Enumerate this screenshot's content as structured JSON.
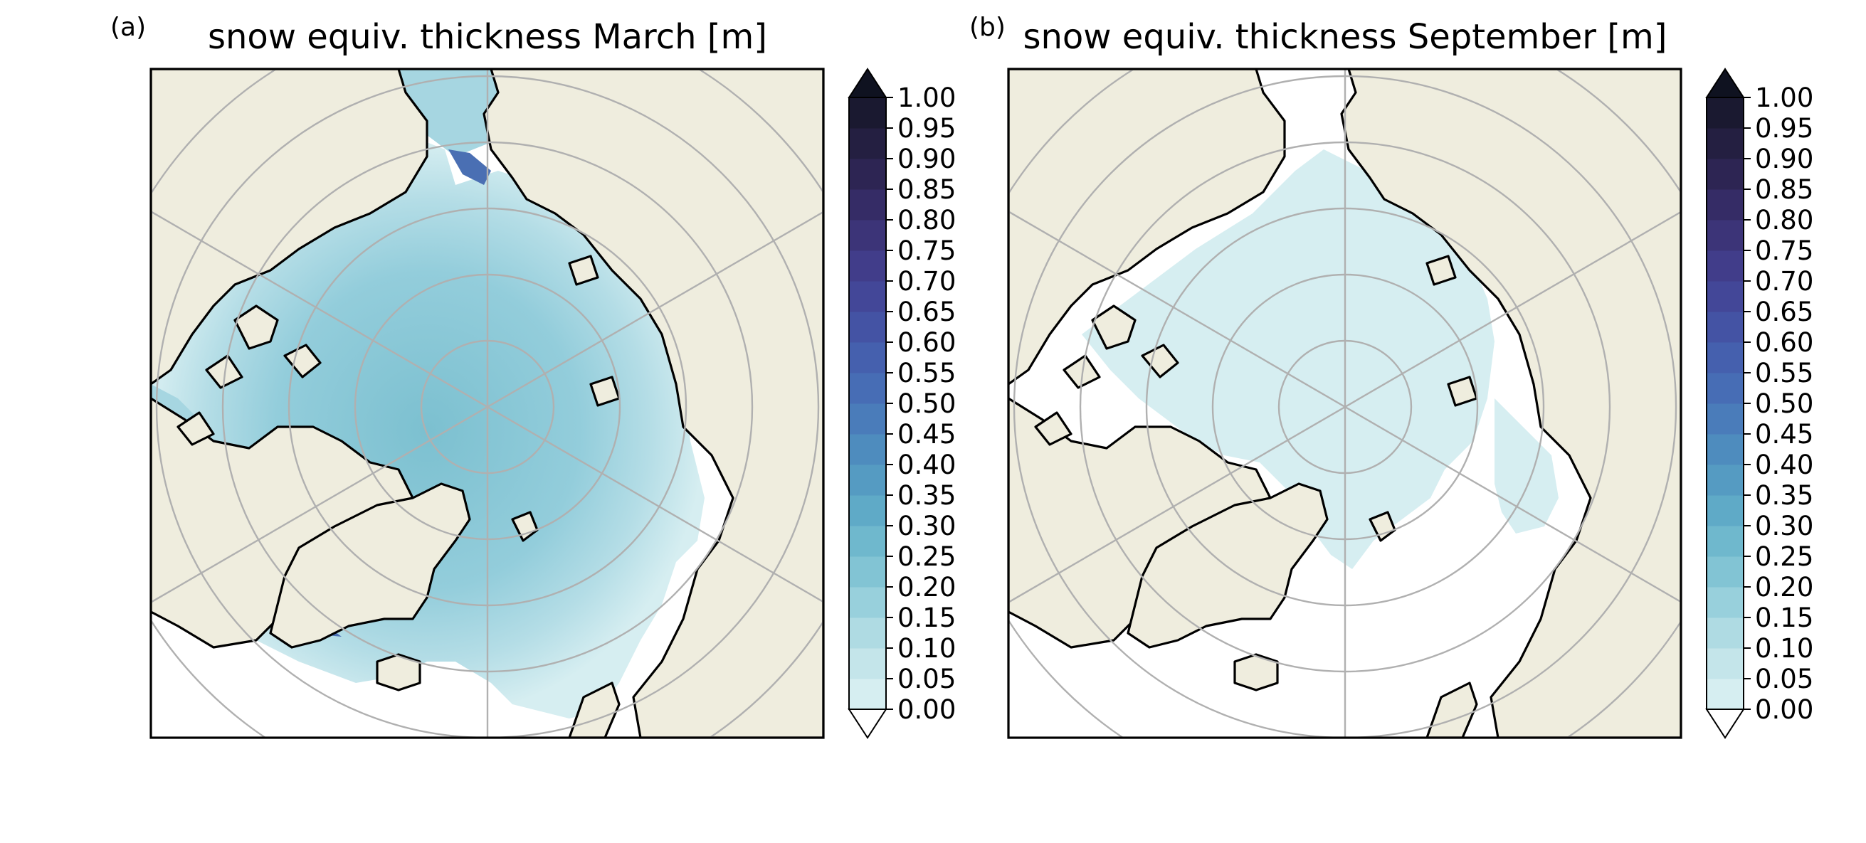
{
  "panels": [
    {
      "label": "(a)",
      "title": "snow equiv. thickness March [m]",
      "month": "March",
      "shading": "high"
    },
    {
      "label": "(b)",
      "title": "snow equiv. thickness September [m]",
      "month": "September",
      "shading": "low"
    }
  ],
  "colorbar": {
    "ticks": [
      "0.00",
      "0.05",
      "0.10",
      "0.15",
      "0.20",
      "0.25",
      "0.30",
      "0.35",
      "0.40",
      "0.45",
      "0.50",
      "0.55",
      "0.60",
      "0.65",
      "0.70",
      "0.75",
      "0.80",
      "0.85",
      "0.90",
      "0.95",
      "1.00"
    ],
    "colors": [
      "#d6eef1",
      "#c4e5ea",
      "#afdbe3",
      "#98d0dc",
      "#82c4d4",
      "#6fb8cd",
      "#5faac7",
      "#559bc2",
      "#4e8cbe",
      "#4a7cba",
      "#476db5",
      "#4560ae",
      "#4453a4",
      "#434798",
      "#413d8a",
      "#3c3478",
      "#352c66",
      "#2d2553",
      "#241f41",
      "#1a1930"
    ],
    "under_color": "#ffffff",
    "over_color": "#0f1220"
  },
  "map_colors": {
    "land": "#efedde",
    "ocean": "#ffffff",
    "grid": "#b0b0b0",
    "coast": "#000000"
  }
}
